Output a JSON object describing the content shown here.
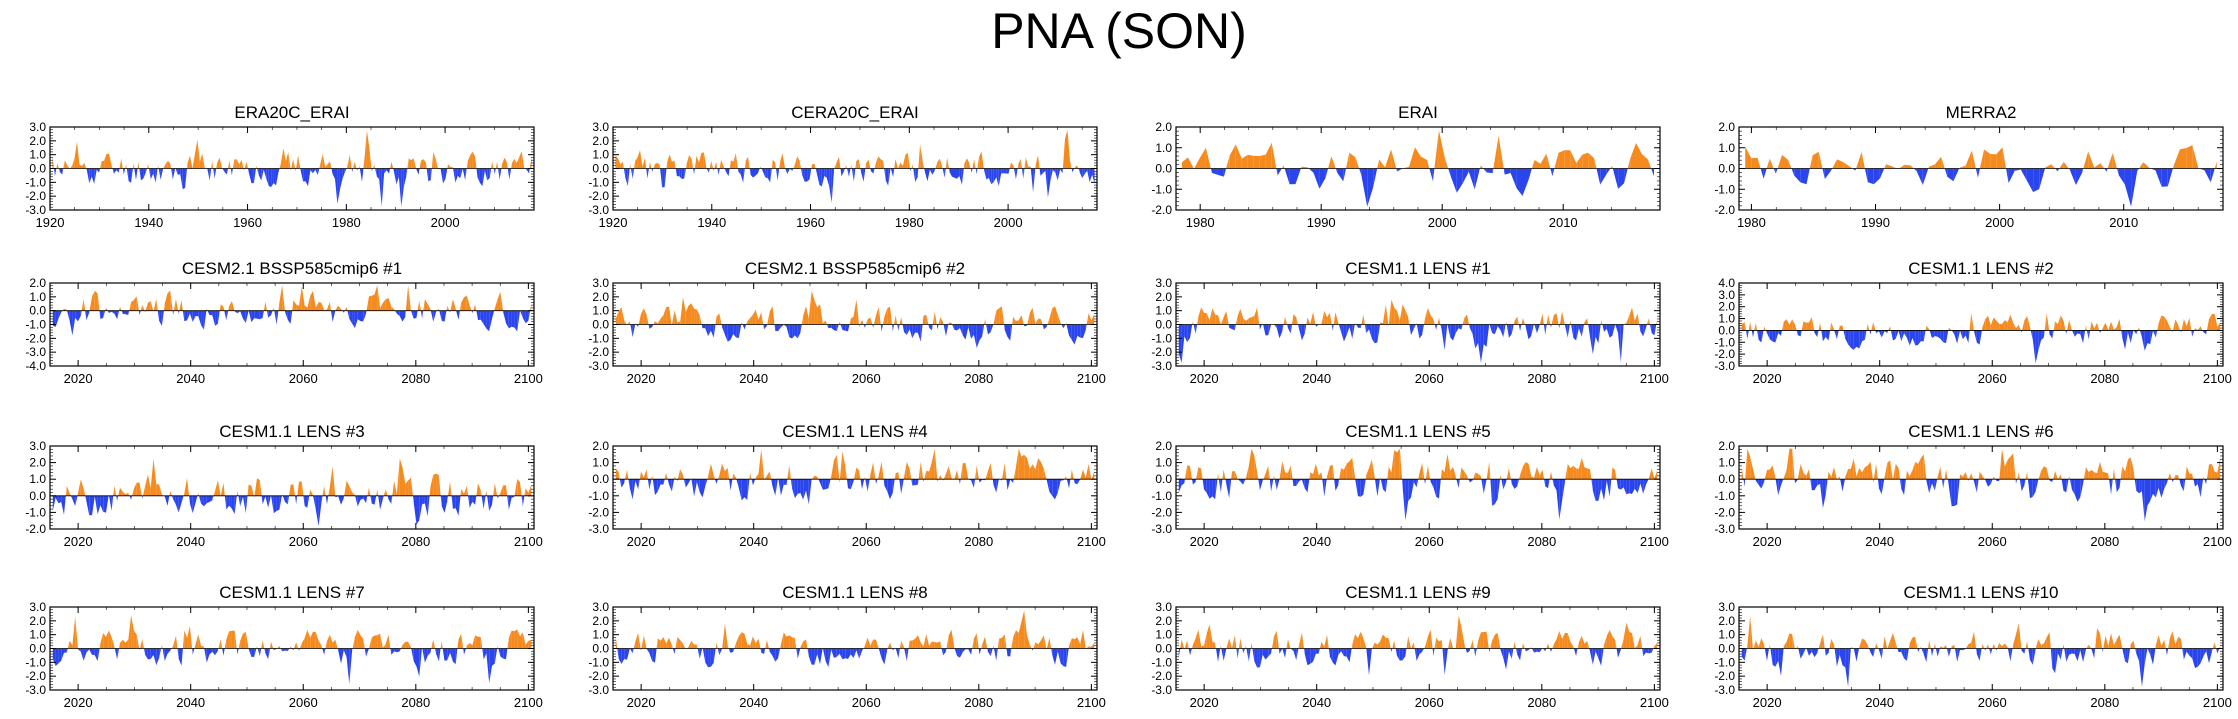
{
  "title": "PNA (SON)",
  "colors": {
    "positive": "#f58a1f",
    "negative": "#2b45ee",
    "axis": "#000000"
  },
  "chart_data": [
    {
      "type": "area",
      "title": "ERA20C_ERAI",
      "xlim": [
        1920,
        2018
      ],
      "ylim": [
        -3.0,
        3.0
      ],
      "xticks": [
        1920,
        1940,
        1960,
        1980,
        2000
      ],
      "yticks": [
        "3.0",
        "2.0",
        "1.0",
        "0.0",
        "-1.0",
        "-2.0",
        "-3.0"
      ],
      "seed": 11
    },
    {
      "type": "area",
      "title": "CERA20C_ERAI",
      "xlim": [
        1920,
        2018
      ],
      "ylim": [
        -3.0,
        3.0
      ],
      "xticks": [
        1920,
        1940,
        1960,
        1980,
        2000
      ],
      "yticks": [
        "3.0",
        "2.0",
        "1.0",
        "0.0",
        "-1.0",
        "-2.0",
        "-3.0"
      ],
      "seed": 23
    },
    {
      "type": "area",
      "title": "ERAI",
      "xlim": [
        1978,
        2018
      ],
      "ylim": [
        -2.0,
        2.0
      ],
      "xticks": [
        1980,
        1990,
        2000,
        2010
      ],
      "yticks": [
        "2.0",
        "1.0",
        "0.0",
        "-1.0",
        "-2.0"
      ],
      "seed": 37
    },
    {
      "type": "area",
      "title": "MERRA2",
      "xlim": [
        1979,
        2018
      ],
      "ylim": [
        -2.0,
        2.0
      ],
      "xticks": [
        1980,
        1990,
        2000,
        2010
      ],
      "yticks": [
        "2.0",
        "1.0",
        "0.0",
        "-1.0",
        "-2.0"
      ],
      "seed": 41
    },
    {
      "type": "area",
      "title": "CESM2.1 BSSP585cmip6 #1",
      "xlim": [
        2015,
        2101
      ],
      "ylim": [
        -4.0,
        2.0
      ],
      "xticks": [
        2020,
        2040,
        2060,
        2080,
        2100
      ],
      "yticks": [
        "2.0",
        "1.0",
        "0.0",
        "-1.0",
        "-2.0",
        "-3.0",
        "-4.0"
      ],
      "seed": 53
    },
    {
      "type": "area",
      "title": "CESM2.1 BSSP585cmip6 #2",
      "xlim": [
        2015,
        2101
      ],
      "ylim": [
        -3.0,
        3.0
      ],
      "xticks": [
        2020,
        2040,
        2060,
        2080,
        2100
      ],
      "yticks": [
        "3.0",
        "2.0",
        "1.0",
        "0.0",
        "-1.0",
        "-2.0",
        "-3.0"
      ],
      "seed": 61
    },
    {
      "type": "area",
      "title": "CESM1.1 LENS #1",
      "xlim": [
        2015,
        2101
      ],
      "ylim": [
        -3.0,
        3.0
      ],
      "xticks": [
        2020,
        2040,
        2060,
        2080,
        2100
      ],
      "yticks": [
        "3.0",
        "2.0",
        "1.0",
        "0.0",
        "-1.0",
        "-2.0",
        "-3.0"
      ],
      "seed": 71
    },
    {
      "type": "area",
      "title": "CESM1.1 LENS #2",
      "xlim": [
        2015,
        2101
      ],
      "ylim": [
        -3.0,
        4.0
      ],
      "xticks": [
        2020,
        2040,
        2060,
        2080,
        2100
      ],
      "yticks": [
        "4.0",
        "3.0",
        "2.0",
        "1.0",
        "0.0",
        "-1.0",
        "-2.0",
        "-3.0"
      ],
      "seed": 79
    },
    {
      "type": "area",
      "title": "CESM1.1 LENS #3",
      "xlim": [
        2015,
        2101
      ],
      "ylim": [
        -2.0,
        3.0
      ],
      "xticks": [
        2020,
        2040,
        2060,
        2080,
        2100
      ],
      "yticks": [
        "3.0",
        "2.0",
        "1.0",
        "0.0",
        "-1.0",
        "-2.0"
      ],
      "seed": 83
    },
    {
      "type": "area",
      "title": "CESM1.1 LENS #4",
      "xlim": [
        2015,
        2101
      ],
      "ylim": [
        -3.0,
        2.0
      ],
      "xticks": [
        2020,
        2040,
        2060,
        2080,
        2100
      ],
      "yticks": [
        "2.0",
        "1.0",
        "0.0",
        "-1.0",
        "-2.0",
        "-3.0"
      ],
      "seed": 97
    },
    {
      "type": "area",
      "title": "CESM1.1 LENS #5",
      "xlim": [
        2015,
        2101
      ],
      "ylim": [
        -3.0,
        2.0
      ],
      "xticks": [
        2020,
        2040,
        2060,
        2080,
        2100
      ],
      "yticks": [
        "2.0",
        "1.0",
        "0.0",
        "-1.0",
        "-2.0",
        "-3.0"
      ],
      "seed": 101
    },
    {
      "type": "area",
      "title": "CESM1.1 LENS #6",
      "xlim": [
        2015,
        2101
      ],
      "ylim": [
        -3.0,
        2.0
      ],
      "xticks": [
        2020,
        2040,
        2060,
        2080,
        2100
      ],
      "yticks": [
        "2.0",
        "1.0",
        "0.0",
        "-1.0",
        "-2.0",
        "-3.0"
      ],
      "seed": 109
    },
    {
      "type": "area",
      "title": "CESM1.1 LENS #7",
      "xlim": [
        2015,
        2101
      ],
      "ylim": [
        -3.0,
        3.0
      ],
      "xticks": [
        2020,
        2040,
        2060,
        2080,
        2100
      ],
      "yticks": [
        "3.0",
        "2.0",
        "1.0",
        "0.0",
        "-1.0",
        "-2.0",
        "-3.0"
      ],
      "seed": 113
    },
    {
      "type": "area",
      "title": "CESM1.1 LENS #8",
      "xlim": [
        2015,
        2101
      ],
      "ylim": [
        -3.0,
        3.0
      ],
      "xticks": [
        2020,
        2040,
        2060,
        2080,
        2100
      ],
      "yticks": [
        "3.0",
        "2.0",
        "1.0",
        "0.0",
        "-1.0",
        "-2.0",
        "-3.0"
      ],
      "seed": 127
    },
    {
      "type": "area",
      "title": "CESM1.1 LENS #9",
      "xlim": [
        2015,
        2101
      ],
      "ylim": [
        -3.0,
        3.0
      ],
      "xticks": [
        2020,
        2040,
        2060,
        2080,
        2100
      ],
      "yticks": [
        "3.0",
        "2.0",
        "1.0",
        "0.0",
        "-1.0",
        "-2.0",
        "-3.0"
      ],
      "seed": 131
    },
    {
      "type": "area",
      "title": "CESM1.1 LENS #10",
      "xlim": [
        2015,
        2101
      ],
      "ylim": [
        -3.0,
        3.0
      ],
      "xticks": [
        2020,
        2040,
        2060,
        2080,
        2100
      ],
      "yticks": [
        "3.0",
        "2.0",
        "1.0",
        "0.0",
        "-1.0",
        "-2.0",
        "-3.0"
      ],
      "seed": 137
    }
  ]
}
